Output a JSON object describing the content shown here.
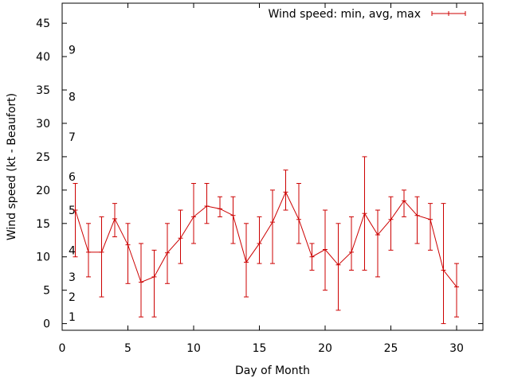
{
  "chart_data": {
    "type": "line",
    "xlabel": "Day of Month",
    "ylabel": "Wind speed (kt - Beaufort)",
    "xlim": [
      0,
      32
    ],
    "ylim": [
      -1,
      48
    ],
    "xticks": [
      0,
      5,
      10,
      15,
      20,
      25,
      30
    ],
    "yticks": [
      0,
      5,
      10,
      15,
      20,
      25,
      30,
      35,
      40,
      45
    ],
    "grid": false,
    "legend_position": "top-right",
    "beaufort_labels": [
      {
        "label": "1",
        "value": 1
      },
      {
        "label": "2",
        "value": 4
      },
      {
        "label": "3",
        "value": 7
      },
      {
        "label": "4",
        "value": 11
      },
      {
        "label": "5",
        "value": 17
      },
      {
        "label": "6",
        "value": 22
      },
      {
        "label": "7",
        "value": 28
      },
      {
        "label": "8",
        "value": 34
      },
      {
        "label": "9",
        "value": 41
      }
    ],
    "series": [
      {
        "name": "Wind speed: min, avg, max",
        "color": "#cc0000",
        "x": [
          1,
          2,
          3,
          4,
          5,
          6,
          7,
          8,
          9,
          10,
          11,
          12,
          13,
          14,
          15,
          16,
          17,
          18,
          19,
          20,
          21,
          22,
          23,
          24,
          25,
          26,
          27,
          28,
          29,
          30
        ],
        "avg": [
          17,
          10.7,
          10.7,
          15.7,
          11.8,
          6.2,
          7,
          10.6,
          12.8,
          16,
          17.6,
          17.2,
          16.2,
          9.2,
          12,
          15.2,
          19.7,
          15.6,
          10,
          11.1,
          8.8,
          10.7,
          16.5,
          13.3,
          15.6,
          18.4,
          16.2,
          15.6,
          8,
          5.5
        ],
        "min": [
          10,
          7,
          4,
          13,
          6,
          1,
          1,
          6,
          9,
          12,
          15,
          16,
          12,
          4,
          9,
          9,
          17,
          12,
          8,
          5,
          2,
          8,
          8,
          7,
          11,
          16,
          12,
          11,
          0,
          1
        ],
        "max": [
          21,
          15,
          16,
          18,
          15,
          12,
          11,
          15,
          17,
          21,
          21,
          19,
          19,
          15,
          16,
          20,
          23,
          21,
          12,
          17,
          15,
          16,
          25,
          17,
          19,
          20,
          19,
          18,
          18,
          9
        ]
      }
    ]
  }
}
